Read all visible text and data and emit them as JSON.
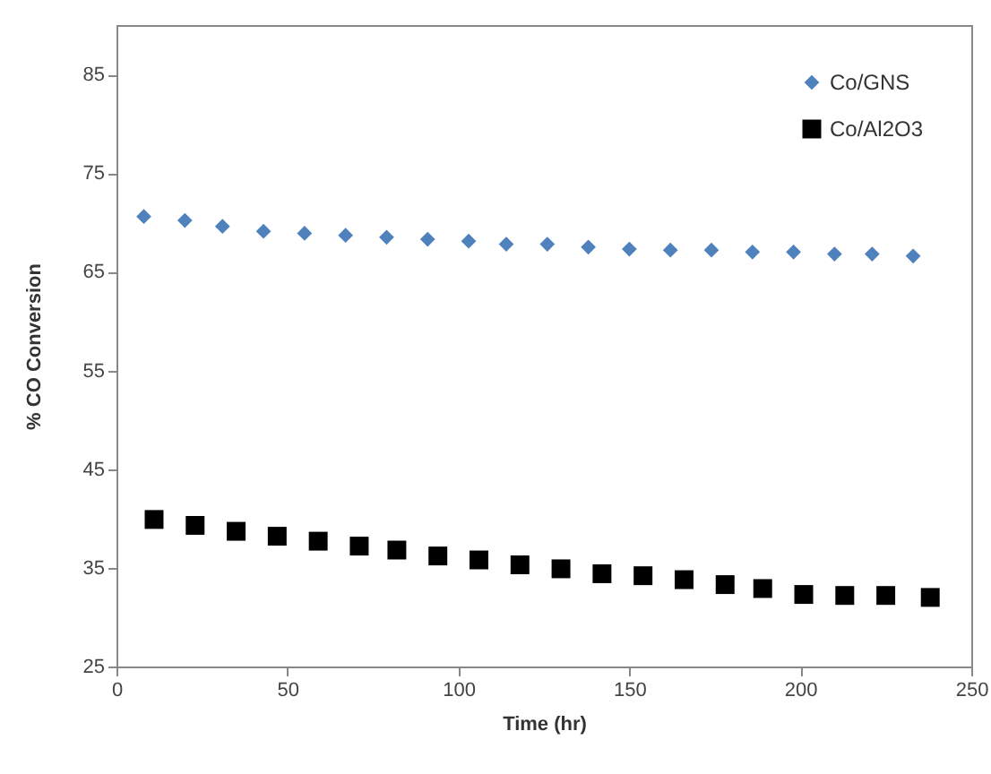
{
  "chart_data": {
    "type": "scatter",
    "xlabel": "Time (hr)",
    "ylabel": "% CO Conversion",
    "xlim": [
      0,
      250
    ],
    "xticks": [
      0,
      50,
      100,
      150,
      200,
      250
    ],
    "ylim": [
      25,
      90
    ],
    "yticks": [
      25,
      35,
      45,
      55,
      65,
      75,
      85
    ],
    "grid": false,
    "legend": "top right",
    "series": [
      {
        "name": "Co/GNS",
        "color": "#4f81bd",
        "marker": "diamond",
        "x": [
          8,
          20,
          31,
          43,
          55,
          67,
          79,
          91,
          103,
          114,
          126,
          138,
          150,
          162,
          174,
          186,
          198,
          210,
          221,
          233
        ],
        "values": [
          70.6,
          70.2,
          69.6,
          69.1,
          68.9,
          68.7,
          68.5,
          68.3,
          68.1,
          67.8,
          67.8,
          67.5,
          67.3,
          67.2,
          67.2,
          67.0,
          67.0,
          66.8,
          66.8,
          66.6
        ]
      },
      {
        "name": "Co/Al2O3",
        "color": "#000000",
        "marker": "square",
        "x": [
          11,
          23,
          35,
          47,
          59,
          71,
          82,
          94,
          106,
          118,
          130,
          142,
          154,
          166,
          178,
          189,
          201,
          213,
          225,
          238
        ],
        "values": [
          39.9,
          39.3,
          38.7,
          38.2,
          37.7,
          37.2,
          36.8,
          36.2,
          35.8,
          35.3,
          34.9,
          34.4,
          34.2,
          33.8,
          33.3,
          32.9,
          32.3,
          32.2,
          32.2,
          32.0
        ]
      }
    ]
  }
}
